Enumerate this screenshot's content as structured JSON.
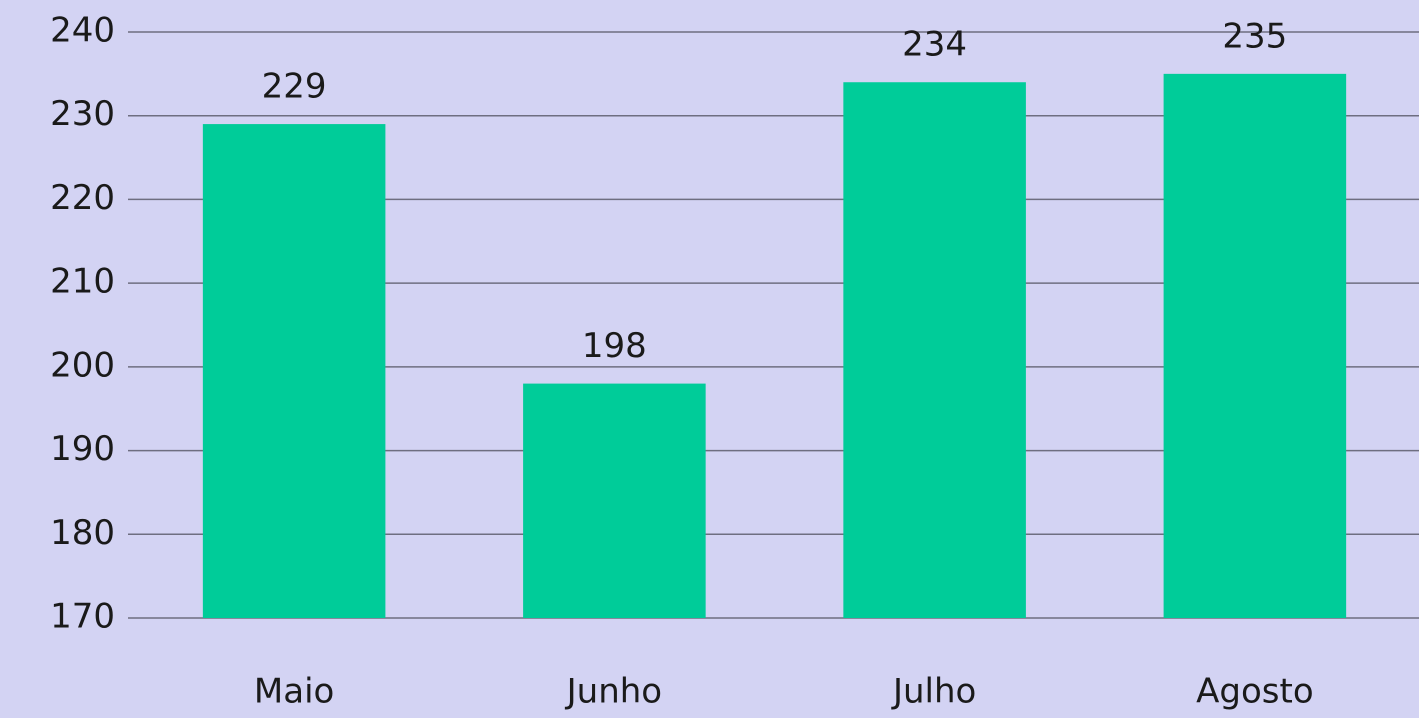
{
  "chart_data": {
    "type": "bar",
    "categories": [
      "Maio",
      "Junho",
      "Julho",
      "Agosto"
    ],
    "values": [
      229,
      198,
      234,
      235
    ],
    "color": "#00cc99",
    "ylim": [
      170,
      240
    ],
    "yticks": [
      170,
      180,
      190,
      200,
      210,
      220,
      230,
      240
    ],
    "grid": true
  }
}
